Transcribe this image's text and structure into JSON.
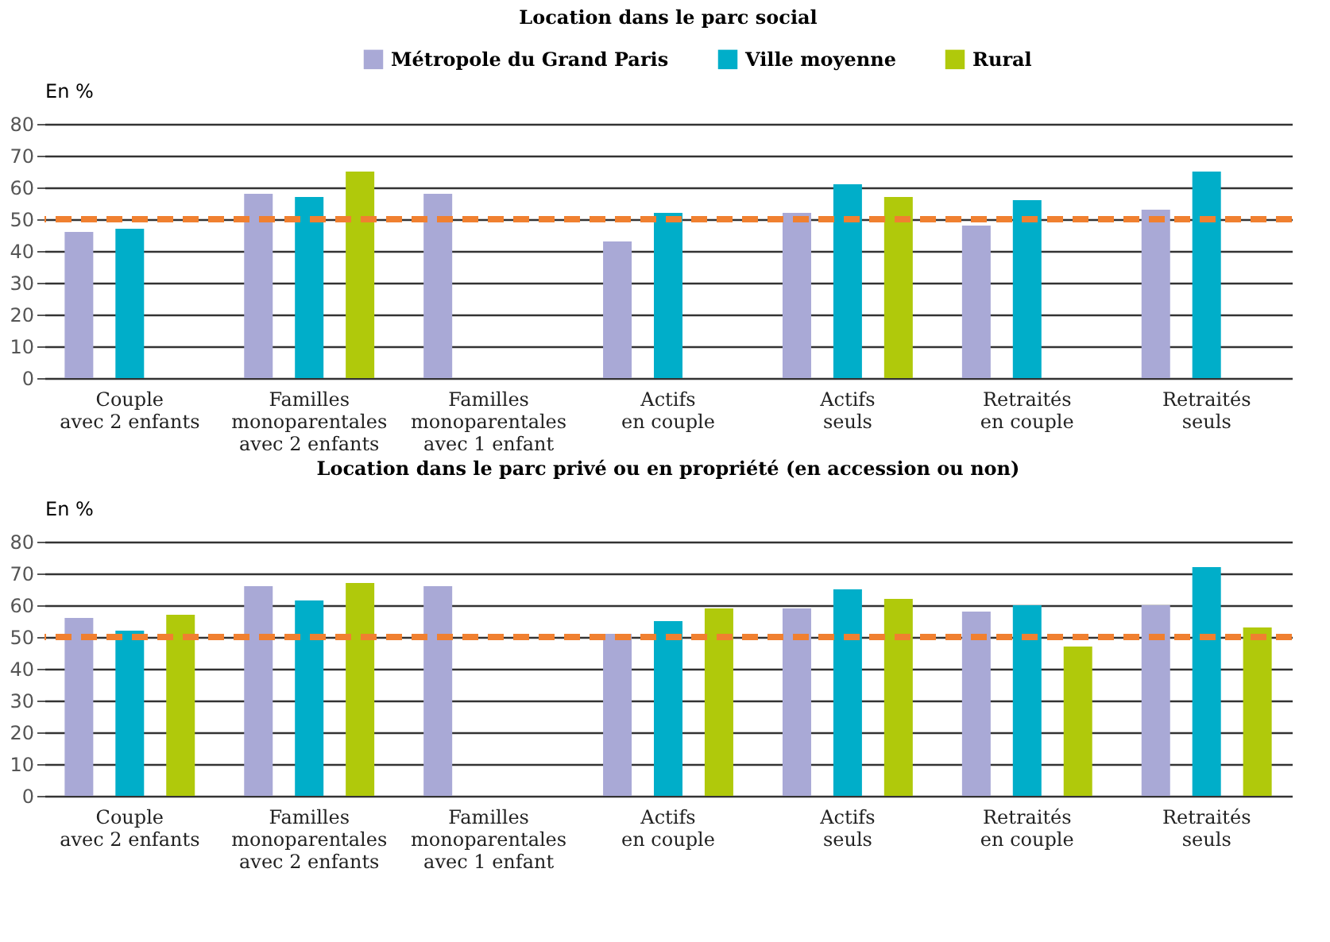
{
  "chart_data": [
    {
      "type": "bar",
      "title": "Location dans le parc social",
      "ylabel": "En %",
      "categories": [
        "Couple\navec 2 enfants",
        "Familles\nmonoparentales\navec 2 enfants",
        "Familles\nmonoparentales\navec 1 enfant",
        "Actifs\nen couple",
        "Actifs\nseuls",
        "Retraités\nen couple",
        "Retraités\nseuls"
      ],
      "series": [
        {
          "name": "Métropole du Grand Paris",
          "color": "#a9a9d6",
          "values": [
            46,
            58,
            58,
            43,
            52,
            48,
            53
          ]
        },
        {
          "name": "Ville moyenne",
          "color": "#00aec9",
          "values": [
            47,
            57,
            null,
            52,
            61,
            56,
            65
          ]
        },
        {
          "name": "Rural",
          "color": "#b0c90b",
          "values": [
            null,
            65,
            null,
            null,
            57,
            null,
            null
          ]
        }
      ],
      "ylim": [
        0,
        80
      ],
      "yticks": [
        0,
        10,
        20,
        30,
        40,
        50,
        60,
        70,
        80
      ],
      "grid": "y",
      "legend": "top",
      "ref_lines": [
        {
          "axis": "y",
          "value": 50,
          "color": "#f08030",
          "line_style": "dashed"
        }
      ]
    },
    {
      "type": "bar",
      "title": "Location dans le parc privé ou en propriété (en accession ou non)",
      "ylabel": "En %",
      "categories": [
        "Couple\navec 2 enfants",
        "Familles\nmonoparentales\navec 2 enfants",
        "Familles\nmonoparentales\navec 1 enfant",
        "Actifs\nen couple",
        "Actifs\nseuls",
        "Retraités\nen couple",
        "Retraités\nseuls"
      ],
      "series": [
        {
          "name": "Métropole du Grand Paris",
          "color": "#a9a9d6",
          "values": [
            56,
            66,
            66,
            51,
            59,
            58,
            60
          ]
        },
        {
          "name": "Ville moyenne",
          "color": "#00aec9",
          "values": [
            52,
            61.5,
            null,
            55,
            65,
            60,
            72
          ]
        },
        {
          "name": "Rural",
          "color": "#b0c90b",
          "values": [
            57,
            67,
            null,
            59,
            62,
            47,
            53
          ]
        }
      ],
      "ylim": [
        0,
        80
      ],
      "yticks": [
        0,
        10,
        20,
        30,
        40,
        50,
        60,
        70,
        80
      ],
      "grid": "y",
      "legend": false,
      "ref_lines": [
        {
          "axis": "y",
          "value": 50,
          "color": "#f08030",
          "line_style": "dashed"
        }
      ]
    }
  ]
}
